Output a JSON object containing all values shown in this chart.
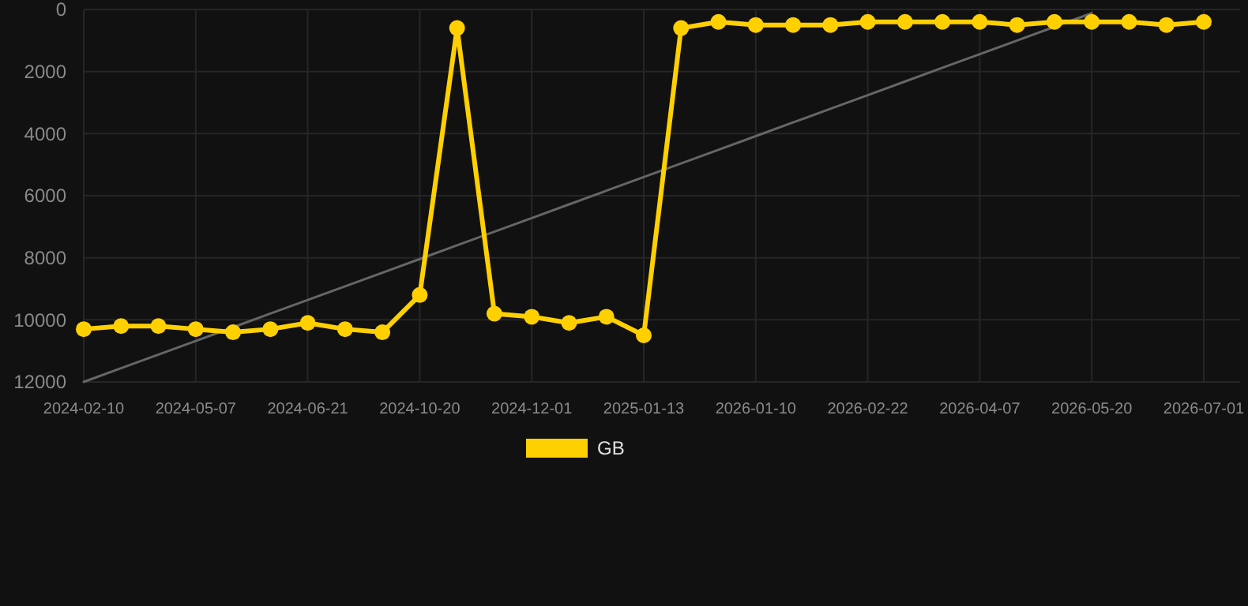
{
  "chart_data": {
    "type": "line",
    "categories": [
      "2024-02-10",
      null,
      null,
      "2024-05-07",
      null,
      null,
      "2024-06-21",
      null,
      null,
      "2024-10-20",
      null,
      null,
      "2024-12-01",
      null,
      null,
      "2025-01-13",
      null,
      null,
      "2026-01-10",
      null,
      null,
      "2026-02-22",
      null,
      null,
      "2026-04-07",
      null,
      null,
      "2026-05-20",
      null,
      null,
      "2026-07-01"
    ],
    "series": [
      {
        "name": "GB",
        "color": "#ffd000",
        "marker": "circle",
        "values": [
          10300,
          10200,
          10200,
          10300,
          10400,
          10300,
          10100,
          10300,
          10400,
          9200,
          600,
          9800,
          9900,
          10100,
          9900,
          10500,
          600,
          400,
          500,
          500,
          500,
          400,
          400,
          400,
          400,
          500,
          400,
          400,
          400,
          500,
          400
        ]
      },
      {
        "type": "line",
        "color": "#666666",
        "marker": "none",
        "values": [
          12000,
          11560,
          11120,
          10680,
          10240,
          9800,
          9360,
          8920,
          8480,
          8040,
          7600,
          7160,
          6720,
          6280,
          5840,
          5400,
          4960,
          4520,
          4080,
          3640,
          3200,
          2760,
          2320,
          1880,
          1440,
          1000,
          560,
          120,
          null,
          null,
          null
        ]
      }
    ],
    "ylim": [
      12000,
      0
    ],
    "yticks": [
      0,
      2000,
      4000,
      6000,
      8000,
      10000,
      12000
    ],
    "grid": true,
    "legend": "bottom"
  }
}
